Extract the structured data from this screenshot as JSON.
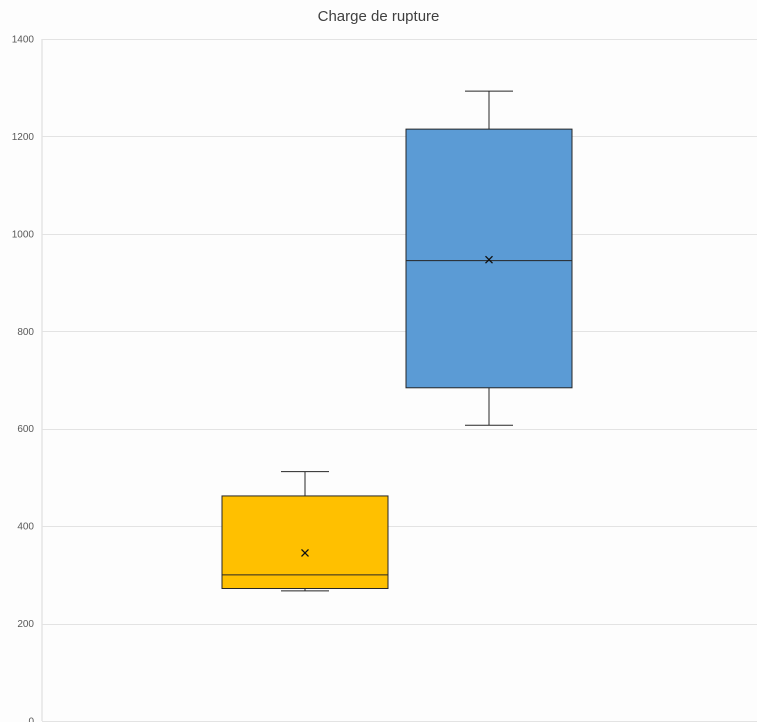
{
  "chart_data": {
    "type": "box",
    "title": "Charge de rupture",
    "xlabel": "",
    "ylabel": "",
    "ylim": [
      0,
      1400
    ],
    "yticks": [
      0,
      200,
      400,
      600,
      800,
      1000,
      1200,
      1400
    ],
    "grid": true,
    "legend": "none",
    "series": [
      {
        "color": "#ffc000",
        "min": 267,
        "q1": 272,
        "median": 300,
        "q3": 462,
        "max": 512,
        "mean": 345
      },
      {
        "color": "#5b9bd5",
        "min": 607,
        "q1": 684,
        "median": 945,
        "q3": 1215,
        "max": 1293,
        "mean": 947
      }
    ]
  }
}
